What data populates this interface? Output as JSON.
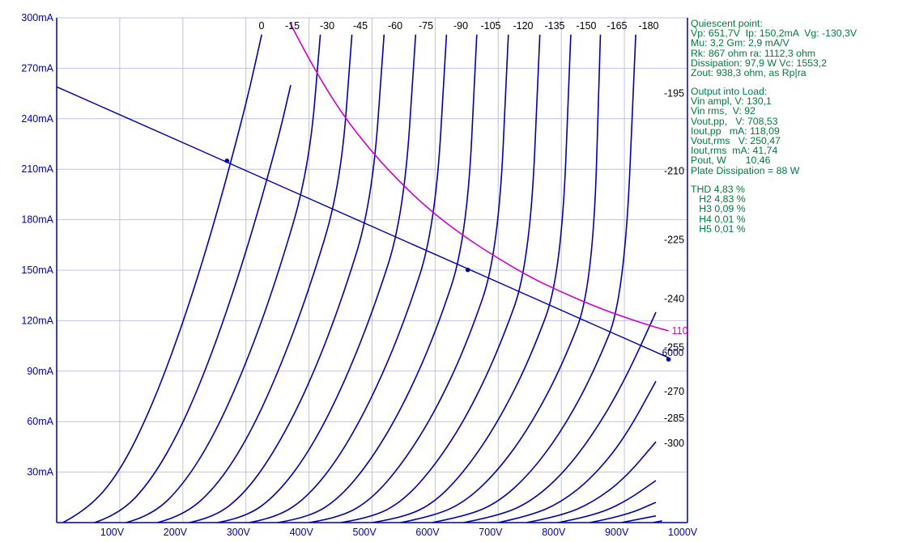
{
  "chart_data": {
    "type": "line",
    "title": "",
    "xlabel": "",
    "ylabel": "",
    "xlim": [
      0,
      1000
    ],
    "ylim": [
      0,
      300
    ],
    "grid": true,
    "x_ticks": [
      {
        "value": 100,
        "label": "100V"
      },
      {
        "value": 200,
        "label": "200V"
      },
      {
        "value": 300,
        "label": "300V"
      },
      {
        "value": 400,
        "label": "400V"
      },
      {
        "value": 500,
        "label": "500V"
      },
      {
        "value": 600,
        "label": "600V"
      },
      {
        "value": 700,
        "label": "700V"
      },
      {
        "value": 800,
        "label": "800V"
      },
      {
        "value": 900,
        "label": "900V"
      },
      {
        "value": 1000,
        "label": "1000V"
      }
    ],
    "y_ticks": [
      {
        "value": 30,
        "label": "30mA"
      },
      {
        "value": 60,
        "label": "60mA"
      },
      {
        "value": 90,
        "label": "90mA"
      },
      {
        "value": 120,
        "label": "120mA"
      },
      {
        "value": 150,
        "label": "150mA"
      },
      {
        "value": 180,
        "label": "180mA"
      },
      {
        "value": 210,
        "label": "210mA"
      },
      {
        "value": 240,
        "label": "240mA"
      },
      {
        "value": 270,
        "label": "270mA"
      },
      {
        "value": 300,
        "label": "300mA"
      }
    ],
    "plate_curves": [
      {
        "name": "0",
        "x": [
          10,
          50,
          100,
          150,
          200,
          250,
          300,
          325
        ],
        "y": [
          0,
          8,
          30,
          68,
          118,
          178,
          248,
          290
        ]
      },
      {
        "name": "-15",
        "x": [
          60,
          100,
          150,
          200,
          250,
          300,
          350,
          371
        ],
        "y": [
          0,
          5,
          25,
          58,
          104,
          160,
          226,
          260
        ]
      },
      {
        "name": "-30",
        "x": [
          110,
          150,
          200,
          250,
          300,
          350,
          400,
          418
        ],
        "y": [
          0,
          4,
          22,
          52,
          94,
          146,
          210,
          290
        ]
      },
      {
        "name": "-45",
        "x": [
          160,
          200,
          250,
          300,
          350,
          400,
          450,
          468
        ],
        "y": [
          0,
          4,
          20,
          48,
          88,
          138,
          200,
          290
        ]
      },
      {
        "name": "-60",
        "x": [
          210,
          250,
          300,
          350,
          400,
          450,
          500,
          519
        ],
        "y": [
          0,
          3,
          18,
          45,
          82,
          130,
          190,
          290
        ]
      },
      {
        "name": "-75",
        "x": [
          255,
          300,
          350,
          400,
          450,
          500,
          550,
          569
        ],
        "y": [
          0,
          3,
          17,
          42,
          78,
          124,
          182,
          290
        ]
      },
      {
        "name": "-90",
        "x": [
          305,
          350,
          400,
          450,
          500,
          550,
          600,
          618
        ],
        "y": [
          0,
          3,
          16,
          40,
          74,
          118,
          175,
          290
        ]
      },
      {
        "name": "-105",
        "x": [
          350,
          400,
          450,
          500,
          550,
          600,
          650,
          666
        ],
        "y": [
          0,
          3,
          15,
          38,
          70,
          112,
          168,
          290
        ]
      },
      {
        "name": "-120",
        "x": [
          400,
          450,
          500,
          550,
          600,
          650,
          700,
          716
        ],
        "y": [
          0,
          3,
          14,
          36,
          66,
          106,
          160,
          290
        ]
      },
      {
        "name": "-135",
        "x": [
          450,
          500,
          550,
          600,
          650,
          700,
          750,
          766
        ],
        "y": [
          0,
          3,
          13,
          34,
          63,
          102,
          154,
          290
        ]
      },
      {
        "name": "-150",
        "x": [
          500,
          550,
          600,
          650,
          700,
          750,
          800,
          815
        ],
        "y": [
          0,
          3,
          12,
          32,
          60,
          97,
          147,
          290
        ]
      },
      {
        "name": "-165",
        "x": [
          545,
          600,
          650,
          700,
          750,
          800,
          850,
          862
        ],
        "y": [
          0,
          4,
          13,
          31,
          57,
          92,
          140,
          290
        ]
      },
      {
        "name": "-180",
        "x": [
          595,
          650,
          700,
          750,
          800,
          850,
          900,
          918
        ],
        "y": [
          0,
          4,
          12,
          29,
          54,
          88,
          134,
          290
        ]
      },
      {
        "name": "-195",
        "x": [
          645,
          700,
          750,
          800,
          850,
          900,
          950
        ],
        "y": [
          0,
          4,
          12,
          28,
          52,
          84,
          125
        ]
      },
      {
        "name": "-210",
        "x": [
          700,
          750,
          800,
          850,
          900,
          950
        ],
        "y": [
          0,
          4,
          12,
          27,
          50,
          84
        ]
      },
      {
        "name": "-225",
        "x": [
          745,
          800,
          850,
          900,
          950
        ],
        "y": [
          0,
          4,
          12,
          26,
          48
        ]
      },
      {
        "name": "-240",
        "x": [
          795,
          850,
          900,
          950
        ],
        "y": [
          0,
          4,
          12,
          25
        ]
      },
      {
        "name": "-255",
        "x": [
          845,
          900,
          950
        ],
        "y": [
          0,
          4,
          12
        ]
      },
      {
        "name": "-270",
        "x": [
          895,
          950
        ],
        "y": [
          0,
          4
        ]
      },
      {
        "name": "-285",
        "x": [
          945,
          960
        ],
        "y": [
          0,
          1
        ]
      },
      {
        "name": "-300",
        "x": [
          990
        ],
        "y": [
          0
        ]
      }
    ],
    "curve_labels_top": [
      "0",
      "-15",
      "-30",
      "-45",
      "-60",
      "-75",
      "-90",
      "-105",
      "-120",
      "-135",
      "-150",
      "-165",
      "-180"
    ],
    "curve_labels_side": [
      {
        "text": "-195",
        "y": 255
      },
      {
        "text": "-210",
        "y": 209
      },
      {
        "text": "-225",
        "y": 168
      },
      {
        "text": "-240",
        "y": 133
      },
      {
        "text": "-255",
        "y": 104
      },
      {
        "text": "-270",
        "y": 78
      },
      {
        "text": "-285",
        "y": 62
      },
      {
        "text": "-300",
        "y": 47
      }
    ],
    "load_line": {
      "name": "6000",
      "x": [
        0,
        970
      ],
      "y": [
        259,
        98
      ]
    },
    "operating_points": [
      {
        "x": 270,
        "y": 215
      },
      {
        "x": 651.7,
        "y": 150.2
      },
      {
        "x": 970,
        "y": 97
      }
    ],
    "dissipation_curve": {
      "name": "110",
      "color": "#cc00cc",
      "x": [
        370,
        400,
        450,
        500,
        550,
        600,
        650,
        700,
        750,
        800,
        850,
        900,
        950,
        970
      ],
      "y": [
        297,
        275,
        244,
        220,
        200,
        183,
        169,
        157,
        146,
        137,
        129,
        122,
        116,
        114
      ]
    },
    "colors": {
      "curves": "#0000aa",
      "grid": "#c0c0e8",
      "axes": "#0000aa",
      "info_text": "#007a3d"
    }
  },
  "info": {
    "quiescent": [
      "Quiescent point:",
      "Vp: 651,7V  Ip: 150,2mA  Vg: -130,3V",
      "Mu: 3,2 Gm: 2,9 mA/V",
      "Rk: 867 ohm ra: 1112,3 ohm",
      "Dissipation: 97,9 W Vc: 1553,2",
      "Zout: 938,3 ohm, as Rp|ra"
    ],
    "output": [
      "Output into Load:",
      "Vin ampl, V: 130,1",
      "Vin rms,  V: 92",
      "Vout,pp,   V: 708,53",
      "Iout,pp   mA: 118,09",
      "Vout,rms   V: 250,47",
      "Iout,rms  mA: 41,74",
      "Pout, W       10,46",
      "Plate Dissipation = 88 W"
    ],
    "distortion": [
      "THD 4,83 %",
      "   H2 4,83 %",
      "   H3 0,09 %",
      "   H4 0,01 %",
      "   H5 0,01 %"
    ]
  }
}
